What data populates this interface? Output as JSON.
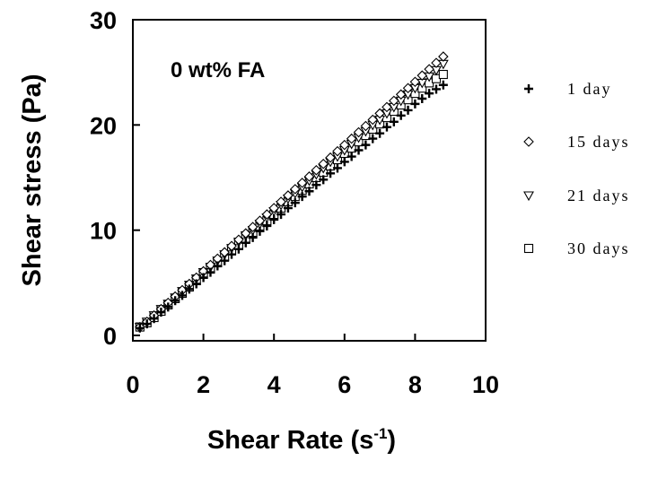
{
  "chart_data": {
    "type": "scatter",
    "annotation": "0 wt% FA",
    "xlabel": "Shear Rate (s",
    "xlabel_sup": "-1",
    "xlabel_tail": ")",
    "ylabel": "Shear stress (Pa)",
    "xlim": [
      0,
      10
    ],
    "ylim": [
      0,
      30
    ],
    "xticks": [
      0,
      2,
      4,
      6,
      8,
      10
    ],
    "yticks": [
      0,
      10,
      20,
      30
    ],
    "xtick_labels": [
      "0",
      "2",
      "4",
      "6",
      "8",
      "10"
    ],
    "ytick_labels": [
      "0",
      "10",
      "20",
      "30"
    ],
    "grid": false,
    "legend_position": "right",
    "series": [
      {
        "name": "1 day",
        "marker": "plus",
        "x": [
          0.2,
          0.4,
          0.6,
          0.8,
          1.0,
          1.2,
          1.4,
          1.6,
          1.8,
          2.0,
          2.2,
          2.4,
          2.6,
          2.8,
          3.0,
          3.2,
          3.4,
          3.6,
          3.8,
          4.0,
          4.2,
          4.4,
          4.6,
          4.8,
          5.0,
          5.2,
          5.4,
          5.6,
          5.8,
          6.0,
          6.2,
          6.4,
          6.6,
          6.8,
          7.0,
          7.2,
          7.4,
          7.6,
          7.8,
          8.0,
          8.2,
          8.4,
          8.6,
          8.8
        ],
        "y": [
          0.7,
          1.1,
          1.6,
          2.2,
          2.7,
          3.3,
          3.8,
          4.4,
          4.9,
          5.5,
          6.0,
          6.6,
          7.1,
          7.7,
          8.2,
          8.8,
          9.3,
          9.9,
          10.4,
          11.0,
          11.5,
          12.1,
          12.6,
          13.2,
          13.7,
          14.3,
          14.8,
          15.4,
          15.9,
          16.5,
          17.0,
          17.6,
          18.1,
          18.7,
          19.2,
          19.8,
          20.3,
          20.9,
          21.4,
          22.0,
          22.5,
          23.0,
          23.4,
          23.8
        ]
      },
      {
        "name": "15 days",
        "marker": "diamond",
        "x": [
          0.2,
          0.4,
          0.6,
          0.8,
          1.0,
          1.2,
          1.4,
          1.6,
          1.8,
          2.0,
          2.2,
          2.4,
          2.6,
          2.8,
          3.0,
          3.2,
          3.4,
          3.6,
          3.8,
          4.0,
          4.2,
          4.4,
          4.6,
          4.8,
          5.0,
          5.2,
          5.4,
          5.6,
          5.8,
          6.0,
          6.2,
          6.4,
          6.6,
          6.8,
          7.0,
          7.2,
          7.4,
          7.6,
          7.8,
          8.0,
          8.2,
          8.4,
          8.6,
          8.8
        ],
        "y": [
          0.8,
          1.3,
          1.9,
          2.5,
          3.1,
          3.7,
          4.3,
          4.9,
          5.5,
          6.1,
          6.7,
          7.3,
          7.9,
          8.5,
          9.1,
          9.7,
          10.3,
          10.9,
          11.5,
          12.1,
          12.7,
          13.3,
          13.9,
          14.5,
          15.1,
          15.7,
          16.3,
          16.9,
          17.5,
          18.1,
          18.7,
          19.3,
          19.9,
          20.5,
          21.1,
          21.7,
          22.3,
          22.9,
          23.5,
          24.1,
          24.7,
          25.3,
          25.9,
          26.5
        ]
      },
      {
        "name": "21 days",
        "marker": "triangle-down",
        "x": [
          0.2,
          0.4,
          0.6,
          0.8,
          1.0,
          1.2,
          1.4,
          1.6,
          1.8,
          2.0,
          2.2,
          2.4,
          2.6,
          2.8,
          3.0,
          3.2,
          3.4,
          3.6,
          3.8,
          4.0,
          4.2,
          4.4,
          4.6,
          4.8,
          5.0,
          5.2,
          5.4,
          5.6,
          5.8,
          6.0,
          6.2,
          6.4,
          6.6,
          6.8,
          7.0,
          7.2,
          7.4,
          7.6,
          7.8,
          8.0,
          8.2,
          8.4,
          8.6,
          8.8
        ],
        "y": [
          0.8,
          1.3,
          1.9,
          2.5,
          3.0,
          3.6,
          4.2,
          4.8,
          5.4,
          6.0,
          6.5,
          7.1,
          7.7,
          8.3,
          8.9,
          9.5,
          10.0,
          10.6,
          11.2,
          11.8,
          12.4,
          13.0,
          13.5,
          14.1,
          14.7,
          15.3,
          15.9,
          16.5,
          17.0,
          17.6,
          18.2,
          18.8,
          19.4,
          20.0,
          20.5,
          21.1,
          21.7,
          22.3,
          22.9,
          23.5,
          24.0,
          24.6,
          25.2,
          25.8
        ]
      },
      {
        "name": "30 days",
        "marker": "square",
        "x": [
          0.2,
          0.4,
          0.6,
          0.8,
          1.0,
          1.2,
          1.4,
          1.6,
          1.8,
          2.0,
          2.2,
          2.4,
          2.6,
          2.8,
          3.0,
          3.2,
          3.4,
          3.6,
          3.8,
          4.0,
          4.2,
          4.4,
          4.6,
          4.8,
          5.0,
          5.2,
          5.4,
          5.6,
          5.8,
          6.0,
          6.2,
          6.4,
          6.6,
          6.8,
          7.0,
          7.2,
          7.4,
          7.6,
          7.8,
          8.0,
          8.2,
          8.4,
          8.6,
          8.8
        ],
        "y": [
          0.8,
          1.2,
          1.7,
          2.3,
          2.9,
          3.5,
          4.0,
          4.6,
          5.2,
          5.8,
          6.3,
          6.9,
          7.5,
          8.1,
          8.6,
          9.2,
          9.8,
          10.4,
          10.9,
          11.5,
          12.1,
          12.7,
          13.2,
          13.8,
          14.4,
          15.0,
          15.5,
          16.1,
          16.7,
          17.3,
          17.8,
          18.4,
          19.0,
          19.6,
          20.1,
          20.7,
          21.3,
          21.9,
          22.4,
          23.0,
          23.5,
          24.0,
          24.4,
          24.8
        ]
      }
    ]
  }
}
